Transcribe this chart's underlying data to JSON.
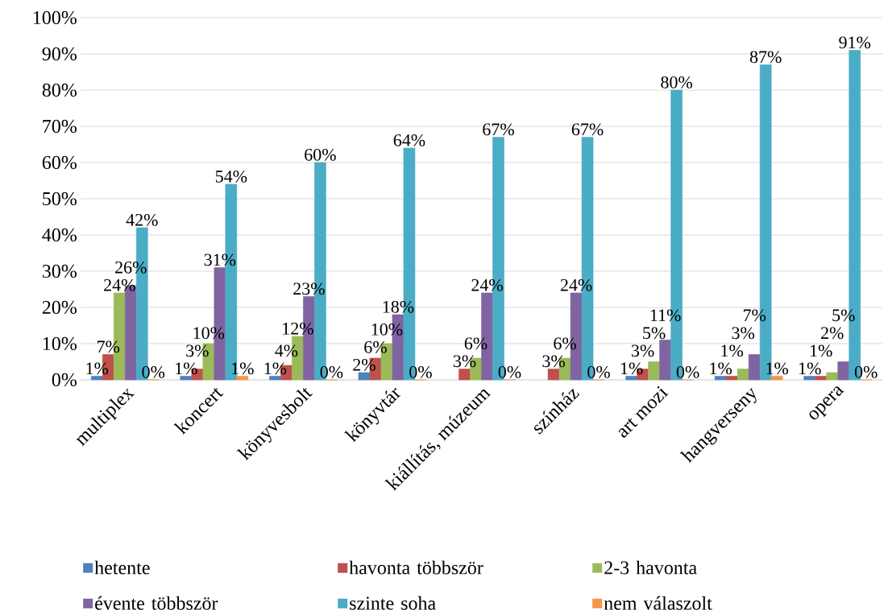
{
  "chart_data": {
    "type": "bar",
    "categories": [
      "multiplex",
      "koncert",
      "könyvesbolt",
      "könyvtár",
      "kiállítás, múzeum",
      "színház",
      "art mozi",
      "hangverseny",
      "opera"
    ],
    "series": [
      {
        "name": "hetente",
        "color": "#4f81bd",
        "values": [
          1,
          1,
          1,
          2,
          null,
          null,
          1,
          1,
          1
        ],
        "value_labels": [
          "1%",
          "1%",
          "1%",
          "2%",
          null,
          null,
          "1%",
          "1%",
          "1%"
        ]
      },
      {
        "name": "havonta többször",
        "color": "#c0504d",
        "values": [
          7,
          3,
          4,
          6,
          3,
          3,
          3,
          1,
          1
        ],
        "value_labels": [
          "7%",
          "3%",
          "4%",
          "6%",
          "3%",
          "3%",
          "3%",
          "1%",
          "1%"
        ]
      },
      {
        "name": "2-3 havonta",
        "color": "#9bbb59",
        "values": [
          24,
          10,
          12,
          10,
          6,
          6,
          5,
          3,
          2
        ],
        "value_labels": [
          "24%",
          "10%",
          "12%",
          "10%",
          "6%",
          "6%",
          "5%",
          "3%",
          "2%"
        ]
      },
      {
        "name": "évente többször",
        "color": "#8064a2",
        "values": [
          26,
          31,
          23,
          18,
          24,
          24,
          11,
          7,
          5
        ],
        "value_labels": [
          "26%",
          "31%",
          "23%",
          "18%",
          "24%",
          "24%",
          "11%",
          "7%",
          "5%"
        ]
      },
      {
        "name": "szinte soha",
        "color": "#4bacc6",
        "values": [
          42,
          54,
          60,
          64,
          67,
          67,
          80,
          87,
          91
        ],
        "value_labels": [
          "42%",
          "54%",
          "60%",
          "64%",
          "67%",
          "67%",
          "80%",
          "87%",
          "91%"
        ]
      },
      {
        "name": "nem válaszolt",
        "color": "#f79646",
        "values": [
          0,
          1,
          0,
          0,
          0,
          0,
          0,
          1,
          0
        ],
        "value_labels": [
          "0%",
          "1%",
          "0%",
          "0%",
          "0%",
          "0%",
          "0%",
          "1%",
          "0%"
        ]
      }
    ],
    "ylim": [
      0,
      100
    ],
    "yticks": [
      {
        "value": 0,
        "label": "0%"
      },
      {
        "value": 10,
        "label": "10%"
      },
      {
        "value": 20,
        "label": "20%"
      },
      {
        "value": 30,
        "label": "30%"
      },
      {
        "value": 40,
        "label": "40%"
      },
      {
        "value": 50,
        "label": "50%"
      },
      {
        "value": 60,
        "label": "60%"
      },
      {
        "value": 70,
        "label": "70%"
      },
      {
        "value": 80,
        "label": "80%"
      },
      {
        "value": 90,
        "label": "90%"
      },
      {
        "value": 100,
        "label": "100%"
      }
    ],
    "grid": "y",
    "legend": "bottom"
  }
}
